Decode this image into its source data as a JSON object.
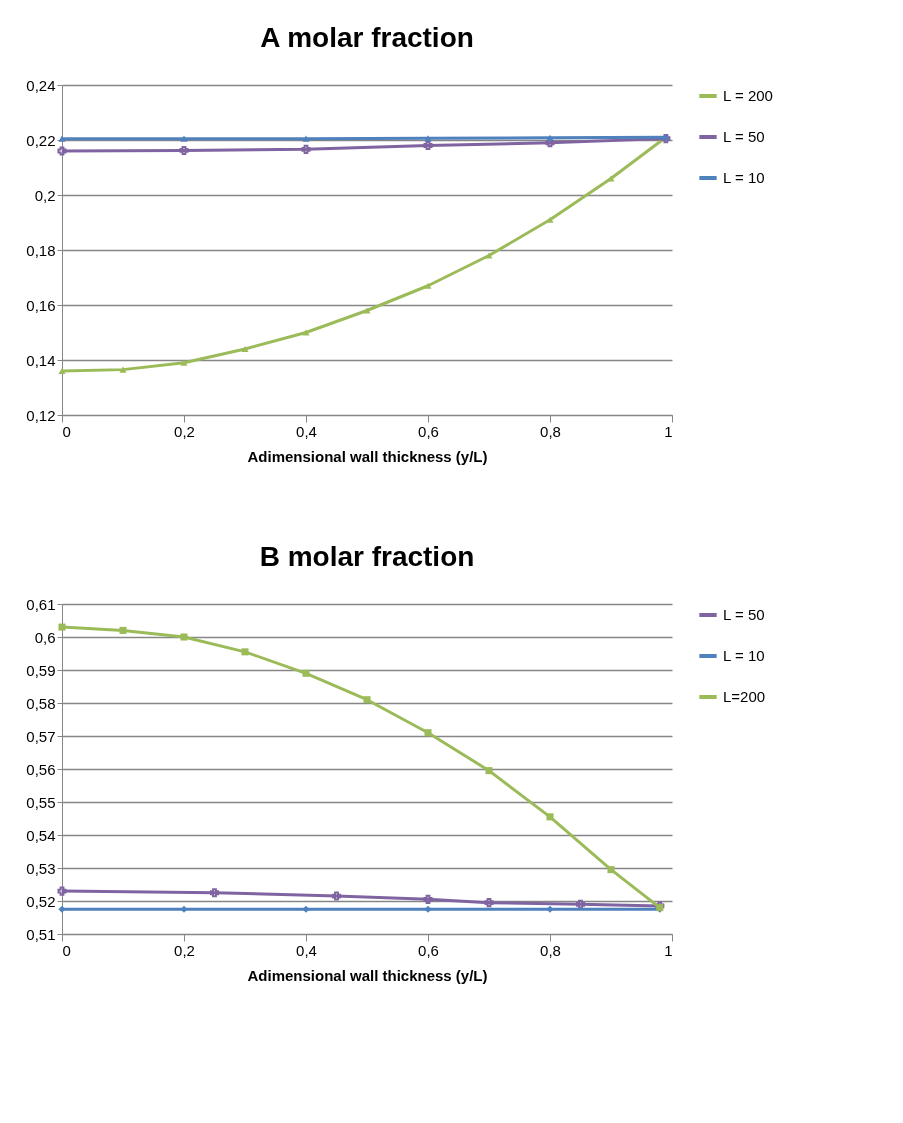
{
  "chart_data": [
    {
      "type": "line",
      "title": "A molar fraction",
      "xlabel": "Adimensional wall thickness (y/L)",
      "xlim": [
        0,
        1
      ],
      "xticks": [
        {
          "value": 0,
          "label": "0"
        },
        {
          "value": 0.2,
          "label": "0,2"
        },
        {
          "value": 0.4,
          "label": "0,4"
        },
        {
          "value": 0.6,
          "label": "0,6"
        },
        {
          "value": 0.8,
          "label": "0,8"
        },
        {
          "value": 1,
          "label": "1"
        }
      ],
      "ylim": [
        0.12,
        0.24
      ],
      "yticks": [
        {
          "value": 0.12,
          "label": "0,12"
        },
        {
          "value": 0.14,
          "label": "0,14"
        },
        {
          "value": 0.16,
          "label": "0,16"
        },
        {
          "value": 0.18,
          "label": "0,18"
        },
        {
          "value": 0.2,
          "label": "0,2"
        },
        {
          "value": 0.22,
          "label": "0,22"
        },
        {
          "value": 0.24,
          "label": "0,24"
        }
      ],
      "grid": "y",
      "legend": "right",
      "series": [
        {
          "name": "L = 200",
          "color": "#9bbb59",
          "marker": "triangle",
          "x": [
            0,
            0.1,
            0.2,
            0.3,
            0.4,
            0.5,
            0.6,
            0.7,
            0.8,
            0.9,
            0.99
          ],
          "values": [
            0.136,
            0.1365,
            0.139,
            0.144,
            0.15,
            0.158,
            0.167,
            0.178,
            0.191,
            0.206,
            0.221
          ]
        },
        {
          "name": "L = 50",
          "color": "#8064a2",
          "marker": "cross",
          "x": [
            0,
            0.2,
            0.4,
            0.6,
            0.8,
            0.99
          ],
          "values": [
            0.216,
            0.2162,
            0.2166,
            0.218,
            0.219,
            0.2205
          ]
        },
        {
          "name": "L =  10",
          "color": "#4f81bd",
          "marker": "triangle",
          "x": [
            0,
            0.2,
            0.4,
            0.6,
            0.8,
            0.99
          ],
          "values": [
            0.2205,
            0.2205,
            0.2205,
            0.2206,
            0.2208,
            0.221
          ]
        }
      ]
    },
    {
      "type": "line",
      "title": "B molar fraction",
      "xlabel": "Adimensional wall thickness (y/L)",
      "xlim": [
        0,
        1
      ],
      "xticks": [
        {
          "value": 0,
          "label": "0"
        },
        {
          "value": 0.2,
          "label": "0,2"
        },
        {
          "value": 0.4,
          "label": "0,4"
        },
        {
          "value": 0.6,
          "label": "0,6"
        },
        {
          "value": 0.8,
          "label": "0,8"
        },
        {
          "value": 1,
          "label": "1"
        }
      ],
      "ylim": [
        0.51,
        0.61
      ],
      "yticks": [
        {
          "value": 0.51,
          "label": "0,51"
        },
        {
          "value": 0.52,
          "label": "0,52"
        },
        {
          "value": 0.53,
          "label": "0,53"
        },
        {
          "value": 0.54,
          "label": "0,54"
        },
        {
          "value": 0.55,
          "label": "0,55"
        },
        {
          "value": 0.56,
          "label": "0,56"
        },
        {
          "value": 0.57,
          "label": "0,57"
        },
        {
          "value": 0.58,
          "label": "0,58"
        },
        {
          "value": 0.59,
          "label": "0,59"
        },
        {
          "value": 0.6,
          "label": "0,6"
        },
        {
          "value": 0.61,
          "label": "0,61"
        }
      ],
      "grid": "y",
      "legend": "right",
      "series": [
        {
          "name": "L = 50",
          "color": "#8064a2",
          "marker": "cross",
          "x": [
            0,
            0.25,
            0.45,
            0.6,
            0.7,
            0.85,
            0.98
          ],
          "values": [
            0.523,
            0.5225,
            0.5215,
            0.5205,
            0.5195,
            0.519,
            0.5185
          ]
        },
        {
          "name": "L = 10",
          "color": "#4f81bd",
          "marker": "diamond",
          "x": [
            0,
            0.2,
            0.4,
            0.6,
            0.8,
            0.98
          ],
          "values": [
            0.5175,
            0.5175,
            0.5175,
            0.5175,
            0.5175,
            0.5175
          ]
        },
        {
          "name": "L=200",
          "color": "#9bbb59",
          "marker": "square",
          "x": [
            0,
            0.1,
            0.2,
            0.3,
            0.4,
            0.5,
            0.6,
            0.7,
            0.8,
            0.9,
            0.98
          ],
          "values": [
            0.603,
            0.602,
            0.6,
            0.5955,
            0.589,
            0.581,
            0.571,
            0.5595,
            0.5455,
            0.5295,
            0.518
          ]
        }
      ]
    }
  ]
}
